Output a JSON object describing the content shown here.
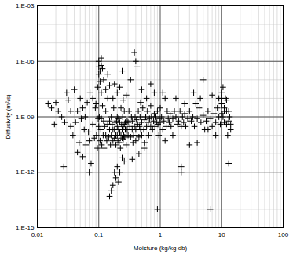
{
  "chart_data": {
    "type": "scatter",
    "xlabel": "Moisture (kg/kg db)",
    "ylabel": "Diffusivity (m²/s)",
    "log": true,
    "grid": true,
    "marker": "plus",
    "color": "#000000",
    "xlim": [
      0.01,
      100
    ],
    "xticks": [
      0.01,
      0.1,
      1,
      10,
      100
    ],
    "ylim": [
      1e-15,
      0.001
    ],
    "yticks": [
      {
        "value": 1e-15,
        "label": "1.E-15"
      },
      {
        "value": 1e-12,
        "label": "1.E-12"
      },
      {
        "value": 1e-09,
        "label": "1.E-09"
      },
      {
        "value": 1e-06,
        "label": "1.E-06"
      },
      {
        "value": 0.001,
        "label": "1.E-03"
      }
    ],
    "x": [
      0.015,
      0.017,
      0.019,
      0.02,
      0.022,
      0.025,
      0.027,
      0.028,
      0.03,
      0.032,
      0.035,
      0.038,
      0.04,
      0.042,
      0.045,
      0.048,
      0.05,
      0.052,
      0.055,
      0.058,
      0.06,
      0.062,
      0.065,
      0.068,
      0.07,
      0.072,
      0.075,
      0.08,
      0.085,
      0.09,
      0.092,
      0.095,
      0.098,
      0.07,
      0.055,
      0.045,
      0.035,
      0.08,
      0.088,
      0.096,
      0.1,
      0.1,
      0.1,
      0.105,
      0.105,
      0.11,
      0.11,
      0.11,
      0.115,
      0.12,
      0.1,
      0.102,
      0.105,
      0.108,
      0.11,
      0.112,
      0.115,
      0.118,
      0.12,
      0.122,
      0.125,
      0.13,
      0.13,
      0.135,
      0.14,
      0.14,
      0.145,
      0.15,
      0.15,
      0.155,
      0.16,
      0.16,
      0.165,
      0.17,
      0.17,
      0.175,
      0.18,
      0.18,
      0.185,
      0.19,
      0.19,
      0.195,
      0.2,
      0.2,
      0.2,
      0.205,
      0.21,
      0.21,
      0.215,
      0.22,
      0.22,
      0.225,
      0.23,
      0.23,
      0.235,
      0.24,
      0.24,
      0.245,
      0.25,
      0.25,
      0.255,
      0.26,
      0.26,
      0.265,
      0.27,
      0.27,
      0.28,
      0.28,
      0.29,
      0.29,
      0.15,
      0.16,
      0.17,
      0.18,
      0.19,
      0.2,
      0.21,
      0.22,
      0.24,
      0.26,
      0.13,
      0.15,
      0.17,
      0.2,
      0.22,
      0.25,
      0.28,
      0.14,
      0.18,
      0.24,
      0.3,
      0.3,
      0.31,
      0.32,
      0.33,
      0.34,
      0.35,
      0.35,
      0.36,
      0.37,
      0.38,
      0.39,
      0.4,
      0.4,
      0.41,
      0.42,
      0.43,
      0.44,
      0.45,
      0.46,
      0.47,
      0.48,
      0.5,
      0.5,
      0.52,
      0.54,
      0.55,
      0.56,
      0.58,
      0.6,
      0.62,
      0.64,
      0.65,
      0.67,
      0.7,
      0.7,
      0.72,
      0.75,
      0.78,
      0.8,
      0.82,
      0.85,
      0.88,
      0.9,
      0.92,
      0.95,
      0.97,
      0.35,
      0.45,
      0.55,
      0.38,
      0.4,
      0.42,
      0.5,
      0.6,
      0.7,
      0.8,
      0.9,
      0.33,
      0.48,
      1,
      1,
      1.05,
      1.1,
      1.15,
      1.2,
      1.25,
      1.3,
      1.35,
      1.4,
      1.45,
      1.5,
      1.6,
      1.7,
      1.8,
      1.9,
      2,
      2.1,
      2.2,
      2.3,
      2.4,
      2.5,
      2.6,
      2.8,
      3,
      3.2,
      3.4,
      3.6,
      3.8,
      4,
      4.3,
      4.6,
      5,
      5.3,
      5.6,
      6,
      6.5,
      7,
      7.5,
      8,
      8.5,
      9,
      9.5,
      1.2,
      1.6,
      2.2,
      2.2,
      3,
      5,
      6.5,
      1.1,
      1.8,
      2.5,
      3.5,
      4.5,
      7,
      9,
      4,
      6,
      8,
      10,
      10,
      10.5,
      11,
      11,
      11.5,
      12,
      12,
      13,
      13.5,
      10,
      10.5,
      11,
      12,
      13,
      14,
      14,
      13,
      12.5,
      10.2
    ],
    "values": [
      5e-09,
      3e-09,
      4e-10,
      6e-09,
      2e-09,
      1e-09,
      2e-12,
      5e-10,
      2e-08,
      8e-09,
      3e-10,
      1e-10,
      3e-08,
      5e-10,
      2e-09,
      4e-11,
      1e-08,
      8e-10,
      3e-09,
      2e-10,
      1e-09,
      3e-11,
      6e-09,
      1.5e-10,
      5e-11,
      2e-08,
      3e-12,
      4e-10,
      7e-11,
      5e-09,
      1e-10,
      2e-11,
      8e-10,
      1e-12,
      7e-12,
      1.2e-11,
      2e-09,
      1e-08,
      3e-09,
      4e-08,
      2e-07,
      5e-07,
      1e-06,
      3e-07,
      8e-08,
      1.5e-06,
      6e-07,
      2e-08,
      4e-07,
      1e-07,
      3e-10,
      1e-09,
      5e-11,
      2e-10,
      8e-10,
      3e-11,
      4e-09,
      1e-10,
      6e-10,
      2e-11,
      3e-10,
      1e-10,
      2e-09,
      5e-11,
      4e-10,
      1e-08,
      8e-11,
      2e-10,
      6e-10,
      3e-11,
      1e-10,
      1e-09,
      4e-10,
      2e-10,
      5e-11,
      3e-09,
      7e-11,
      2e-10,
      5e-10,
      1e-10,
      3e-11,
      6e-10,
      1e-10,
      3e-10,
      1e-09,
      5e-11,
      2e-10,
      8e-10,
      4e-11,
      1.5e-10,
      5e-10,
      2e-11,
      1e-10,
      3e-09,
      4e-10,
      7e-11,
      2e-10,
      1e-09,
      3e-10,
      6e-11,
      1e-10,
      4e-10,
      2e-09,
      8e-11,
      2e-10,
      5e-10,
      1e-10,
      3e-11,
      6e-10,
      2e-10,
      5e-14,
      1e-13,
      2e-13,
      1e-12,
      5e-13,
      2e-12,
      3e-13,
      1e-12,
      6e-12,
      4e-12,
      3e-08,
      5e-08,
      1e-08,
      2e-08,
      4e-08,
      8e-09,
      1.5e-08,
      2e-07,
      6e-08,
      3e-07,
      1e-10,
      5e-10,
      2e-09,
      3e-10,
      8e-11,
      1e-09,
      2e-10,
      6e-10,
      4e-11,
      1e-10,
      3e-10,
      1e-09,
      5e-11,
      2e-10,
      7e-10,
      1e-10,
      4e-10,
      2e-09,
      8e-11,
      3e-10,
      1e-09,
      2e-10,
      5e-10,
      1e-10,
      3e-09,
      2e-10,
      7e-10,
      4e-11,
      1e-09,
      3e-10,
      2e-09,
      5e-10,
      1e-10,
      8e-10,
      3e-10,
      4e-09,
      1e-09,
      2e-10,
      6e-10,
      1.5e-09,
      3e-10,
      1e-09,
      5e-10,
      2e-09,
      4e-10,
      1e-10,
      8e-10,
      5e-12,
      1e-11,
      2e-11,
      3e-06,
      1e-06,
      5e-07,
      3e-08,
      1e-08,
      6e-08,
      2e-08,
      1e-14,
      1e-07,
      6e-09,
      5e-10,
      3e-09,
      1e-09,
      2e-10,
      6e-10,
      1e-08,
      3e-10,
      2e-09,
      8e-10,
      5e-10,
      1.5e-09,
      3e-10,
      8e-10,
      2e-09,
      1e-09,
      4e-10,
      6e-10,
      2e-09,
      3e-10,
      1e-09,
      5e-10,
      1.5e-09,
      3e-10,
      8e-10,
      2e-09,
      6e-10,
      1e-09,
      3e-10,
      5e-09,
      8e-10,
      3e-09,
      5e-10,
      1.2e-09,
      2e-10,
      6e-10,
      2e-09,
      8e-10,
      3e-10,
      1.5e-09,
      5e-10,
      3e-09,
      1e-09,
      4e-10,
      5e-11,
      1e-10,
      1e-12,
      2e-12,
      3e-11,
      1e-07,
      1e-14,
      2e-08,
      1e-08,
      5e-09,
      2e-08,
      1e-08,
      1.5e-08,
      1e-08,
      4e-11,
      2e-10,
      1e-10,
      2e-08,
      5e-09,
      1e-09,
      3e-09,
      5e-10,
      1e-08,
      2e-09,
      4e-10,
      3e-12,
      1e-09,
      1e-08,
      4e-08,
      2e-09,
      8e-09,
      6e-10,
      2e-10,
      4e-10,
      2e-09,
      1e-10,
      1.5e-09
    ]
  }
}
